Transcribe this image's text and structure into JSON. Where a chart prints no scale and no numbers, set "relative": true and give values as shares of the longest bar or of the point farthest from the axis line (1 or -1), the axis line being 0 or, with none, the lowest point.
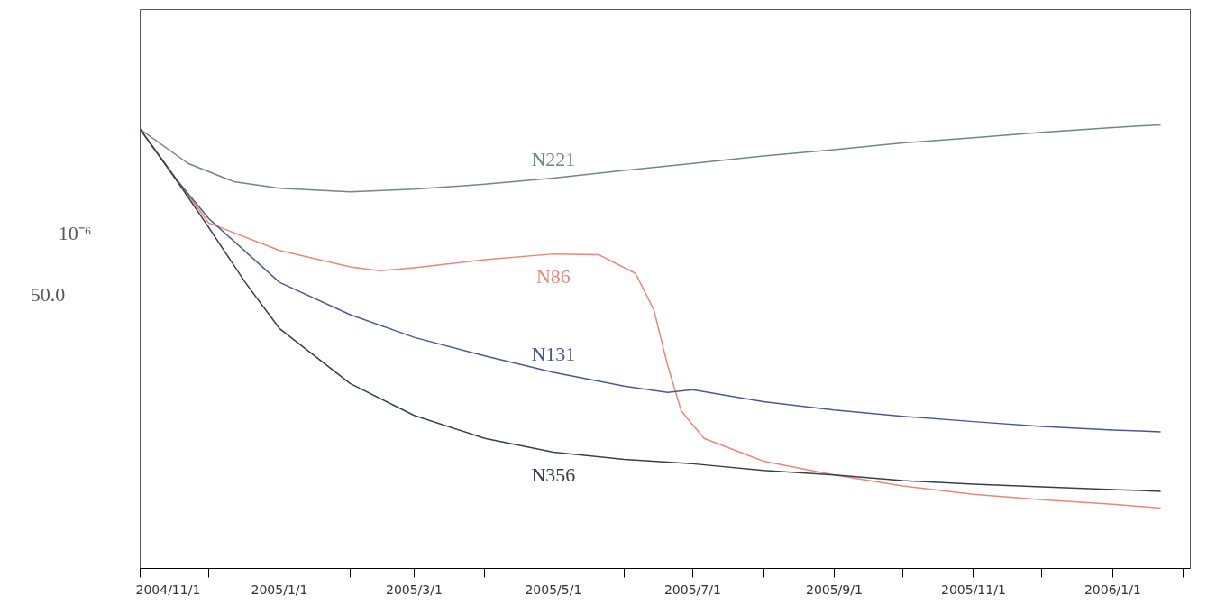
{
  "chart_data": {
    "type": "line",
    "relative": true,
    "ylabel": "10⁻⁶",
    "annotations": [
      "50.0"
    ],
    "xlim": [
      "2004-11-01",
      "2006-02-04"
    ],
    "xticks": [
      {
        "value": "2004-11-01",
        "label": "2004/11/1"
      },
      {
        "value": "2004-12-01",
        "label": null
      },
      {
        "value": "2005-01-01",
        "label": "2005/1/1"
      },
      {
        "value": "2005-02-01",
        "label": null
      },
      {
        "value": "2005-03-01",
        "label": "2005/3/1"
      },
      {
        "value": "2005-04-01",
        "label": null
      },
      {
        "value": "2005-05-01",
        "label": "2005/5/1"
      },
      {
        "value": "2005-06-01",
        "label": null
      },
      {
        "value": "2005-07-01",
        "label": "2005/7/1"
      },
      {
        "value": "2005-08-01",
        "label": null
      },
      {
        "value": "2005-09-01",
        "label": "2005/9/1"
      },
      {
        "value": "2005-10-01",
        "label": null
      },
      {
        "value": "2005-11-01",
        "label": "2005/11/1"
      },
      {
        "value": "2005-12-01",
        "label": null
      },
      {
        "value": "2006-01-01",
        "label": "2006/1/1"
      },
      {
        "value": "2006-02-01",
        "label": null
      }
    ],
    "grid": false,
    "legend": false,
    "marker": "none",
    "line_style": "solid",
    "series": [
      {
        "name": "N221",
        "color": "#6f8a7a",
        "x": [
          "2004-11-01",
          "2004-11-22",
          "2004-12-12",
          "2005-01-01",
          "2005-02-01",
          "2005-03-01",
          "2005-04-01",
          "2005-05-01",
          "2005-06-01",
          "2005-07-01",
          "2005-08-01",
          "2005-09-01",
          "2005-10-01",
          "2005-11-01",
          "2005-12-01",
          "2006-01-01",
          "2006-01-22"
        ],
        "values": [
          0.99,
          0.913,
          0.872,
          0.857,
          0.849,
          0.855,
          0.866,
          0.88,
          0.897,
          0.913,
          0.93,
          0.944,
          0.959,
          0.971,
          0.983,
          0.994,
          1.0
        ]
      },
      {
        "name": "N86",
        "color": "#e8877a",
        "x": [
          "2004-11-01",
          "2004-12-01",
          "2005-01-01",
          "2005-02-01",
          "2005-02-14",
          "2005-03-01",
          "2005-04-01",
          "2005-05-01",
          "2005-05-21",
          "2005-06-06",
          "2005-06-14",
          "2005-06-20",
          "2005-06-26",
          "2005-07-06",
          "2005-08-01",
          "2005-09-01",
          "2005-10-01",
          "2005-11-01",
          "2005-12-01",
          "2006-01-01",
          "2006-01-22"
        ],
        "values": [
          0.99,
          0.779,
          0.717,
          0.68,
          0.671,
          0.678,
          0.696,
          0.709,
          0.707,
          0.665,
          0.583,
          0.459,
          0.355,
          0.293,
          0.242,
          0.211,
          0.186,
          0.167,
          0.155,
          0.145,
          0.136
        ]
      },
      {
        "name": "N131",
        "color": "#4a5a90",
        "x": [
          "2004-11-01",
          "2004-11-16",
          "2004-12-01",
          "2005-01-01",
          "2005-02-01",
          "2005-03-01",
          "2005-04-01",
          "2005-05-01",
          "2005-06-01",
          "2005-06-20",
          "2005-07-01",
          "2005-08-01",
          "2005-09-01",
          "2005-10-01",
          "2005-11-01",
          "2005-12-01",
          "2006-01-01",
          "2006-01-22"
        ],
        "values": [
          0.99,
          0.882,
          0.789,
          0.645,
          0.572,
          0.521,
          0.479,
          0.442,
          0.411,
          0.397,
          0.403,
          0.376,
          0.357,
          0.343,
          0.331,
          0.32,
          0.312,
          0.308
        ]
      },
      {
        "name": "N356",
        "color": "#3a3e4a",
        "x": [
          "2004-11-01",
          "2004-11-16",
          "2004-12-01",
          "2004-12-17",
          "2005-01-01",
          "2005-02-01",
          "2005-03-01",
          "2005-04-01",
          "2005-05-01",
          "2005-06-01",
          "2005-07-01",
          "2005-08-01",
          "2005-09-01",
          "2005-10-01",
          "2005-11-01",
          "2005-12-01",
          "2006-01-01",
          "2006-01-22"
        ],
        "values": [
          0.99,
          0.882,
          0.769,
          0.645,
          0.541,
          0.417,
          0.345,
          0.293,
          0.262,
          0.246,
          0.236,
          0.221,
          0.211,
          0.198,
          0.19,
          0.184,
          0.178,
          0.174
        ]
      }
    ]
  }
}
